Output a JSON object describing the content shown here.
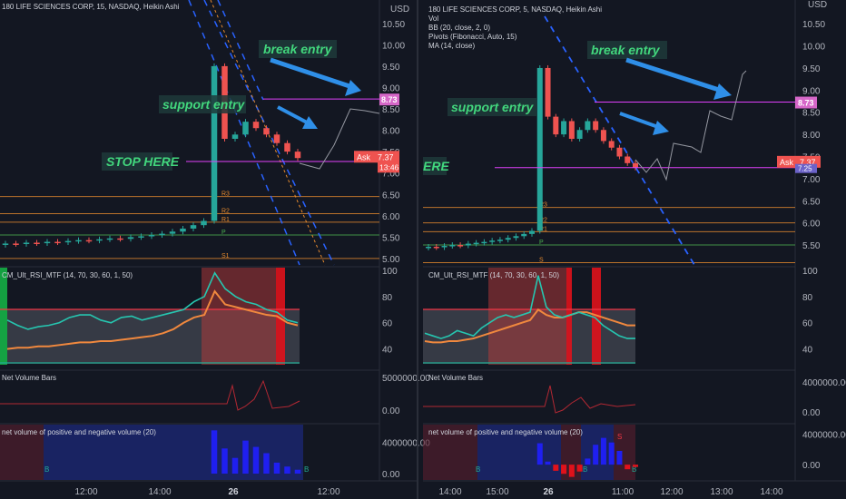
{
  "currency": "USD",
  "left": {
    "title": "180 LIFE SCIENCES CORP, 15, NASDAQ, Heikin Ashi",
    "price_ticks": [
      "10.50",
      "10.00",
      "9.50",
      "9.00",
      "8.50",
      "8.00",
      "7.50",
      "7.00",
      "6.50",
      "6.00",
      "5.50",
      "5.00"
    ],
    "price_tick_values": [
      10.5,
      10.0,
      9.5,
      9.0,
      8.5,
      8.0,
      7.5,
      7.0,
      6.5,
      6.0,
      5.5,
      5.0
    ],
    "price_range": [
      4.85,
      10.75
    ],
    "break_price_label": "8.73",
    "break_price": 8.73,
    "ask_label": "Ask",
    "ask_price": "7.37",
    "ask_value": 7.37,
    "countdown": "13:46",
    "stop_price": 7.27,
    "notes": {
      "break": "break entry",
      "support": "support entry",
      "stop": "STOP HERE"
    },
    "candles": [
      {
        "o": 5.32,
        "c": 5.35
      },
      {
        "o": 5.35,
        "c": 5.34
      },
      {
        "o": 5.34,
        "c": 5.37
      },
      {
        "o": 5.37,
        "c": 5.36
      },
      {
        "o": 5.36,
        "c": 5.39
      },
      {
        "o": 5.39,
        "c": 5.38
      },
      {
        "o": 5.38,
        "c": 5.41
      },
      {
        "o": 5.41,
        "c": 5.43
      },
      {
        "o": 5.43,
        "c": 5.42
      },
      {
        "o": 5.42,
        "c": 5.45
      },
      {
        "o": 5.45,
        "c": 5.47
      },
      {
        "o": 5.47,
        "c": 5.46
      },
      {
        "o": 5.46,
        "c": 5.5
      },
      {
        "o": 5.5,
        "c": 5.52
      },
      {
        "o": 5.52,
        "c": 5.55
      },
      {
        "o": 5.55,
        "c": 5.58
      },
      {
        "o": 5.58,
        "c": 5.63
      },
      {
        "o": 5.63,
        "c": 5.7
      },
      {
        "o": 5.7,
        "c": 5.78
      },
      {
        "o": 5.78,
        "c": 5.88
      },
      {
        "o": 5.88,
        "c": 9.5
      },
      {
        "o": 9.5,
        "c": 7.8
      },
      {
        "o": 7.8,
        "c": 7.9
      },
      {
        "o": 7.9,
        "c": 8.2
      },
      {
        "o": 8.2,
        "c": 8.05
      },
      {
        "o": 8.05,
        "c": 7.9
      },
      {
        "o": 7.9,
        "c": 7.7
      },
      {
        "o": 7.7,
        "c": 7.5
      },
      {
        "o": 7.5,
        "c": 7.35
      }
    ],
    "pivot_levels": [
      6.45,
      6.05,
      5.85,
      5.55,
      5.0
    ],
    "pivot_labels": [
      "R3",
      "R2",
      "R1",
      "P",
      "S1"
    ],
    "rsi": {
      "title": "CM_Ult_RSI_MTF (14, 70, 30, 60, 1, 50)",
      "ticks": [
        "100",
        "80",
        "60",
        "40"
      ],
      "tick_values": [
        100,
        80,
        60,
        40
      ],
      "range": [
        28,
        102
      ],
      "upper": 70,
      "lower": 30,
      "rsi_values": [
        62,
        58,
        55,
        57,
        58,
        60,
        64,
        66,
        66,
        62,
        60,
        64,
        65,
        62,
        64,
        66,
        68,
        70,
        76,
        80,
        98,
        86,
        80,
        76,
        74,
        70,
        68,
        62,
        60
      ],
      "signal_values": [
        40,
        41,
        41,
        42,
        42,
        43,
        44,
        45,
        45,
        46,
        46,
        47,
        48,
        49,
        50,
        52,
        55,
        60,
        64,
        66,
        84,
        74,
        72,
        70,
        68,
        66,
        65,
        60,
        58
      ]
    },
    "nvb": {
      "title": "Net Volume Bars",
      "ticks": [
        "5000000.00",
        "0.00"
      ],
      "tick_values": [
        5000000,
        0
      ],
      "range": [
        -2000000,
        6000000
      ]
    },
    "netvol": {
      "title": "net volume of positive and negative volume (20)",
      "ticks": [
        "4000000.00",
        "0.00"
      ],
      "tick_values": [
        4000000,
        0
      ],
      "range": [
        -800000,
        6000000
      ],
      "b_labels": [
        "B",
        "B"
      ],
      "values": [
        0,
        0,
        0,
        0,
        0,
        0,
        0,
        0,
        0,
        0,
        0,
        0,
        0,
        0,
        0,
        0,
        0,
        0,
        0,
        0,
        5500000,
        3200000,
        2000000,
        4200000,
        3400000,
        2600000,
        1400000,
        900000,
        500000
      ]
    },
    "time_ticks": [
      "12:00",
      "14:00",
      "26",
      "12:00"
    ]
  },
  "right": {
    "title": "180 LIFE SCIENCES CORP, 5, NASDAQ, Heikin Ashi",
    "legend": [
      "Vol",
      "BB (20, close, 2, 0)",
      "Pivots (Fibonacci, Auto, 15)",
      "MA (14, close)"
    ],
    "price_ticks": [
      "10.50",
      "10.00",
      "9.50",
      "9.00",
      "8.50",
      "8.00",
      "7.50",
      "7.00",
      "6.50",
      "6.00",
      "5.50"
    ],
    "price_tick_values": [
      10.5,
      10.0,
      9.5,
      9.0,
      8.5,
      8.0,
      7.5,
      7.0,
      6.5,
      6.0,
      5.5
    ],
    "price_range": [
      5.05,
      10.75
    ],
    "break_price_label": "8.73",
    "break_price": 8.73,
    "ask_label": "Ask",
    "ask_price": "7.37",
    "ask_value": 7.37,
    "small_label": "7.25",
    "stop_price": 7.25,
    "cut_text": "ERE",
    "notes": {
      "break": "break entry",
      "support": "support entry"
    },
    "candles": [
      {
        "o": 5.44,
        "c": 5.46
      },
      {
        "o": 5.46,
        "c": 5.45
      },
      {
        "o": 5.45,
        "c": 5.48
      },
      {
        "o": 5.48,
        "c": 5.5
      },
      {
        "o": 5.5,
        "c": 5.49
      },
      {
        "o": 5.49,
        "c": 5.53
      },
      {
        "o": 5.53,
        "c": 5.55
      },
      {
        "o": 5.55,
        "c": 5.57
      },
      {
        "o": 5.57,
        "c": 5.6
      },
      {
        "o": 5.6,
        "c": 5.62
      },
      {
        "o": 5.62,
        "c": 5.66
      },
      {
        "o": 5.66,
        "c": 5.7
      },
      {
        "o": 5.7,
        "c": 5.75
      },
      {
        "o": 5.75,
        "c": 5.82
      },
      {
        "o": 5.82,
        "c": 9.5
      },
      {
        "o": 9.5,
        "c": 8.4
      },
      {
        "o": 8.4,
        "c": 8.0
      },
      {
        "o": 8.0,
        "c": 8.3
      },
      {
        "o": 8.3,
        "c": 7.9
      },
      {
        "o": 7.9,
        "c": 8.1
      },
      {
        "o": 8.1,
        "c": 8.3
      },
      {
        "o": 8.3,
        "c": 8.1
      },
      {
        "o": 8.1,
        "c": 7.85
      },
      {
        "o": 7.85,
        "c": 7.7
      },
      {
        "o": 7.7,
        "c": 7.5
      },
      {
        "o": 7.5,
        "c": 7.35
      },
      {
        "o": 7.35,
        "c": 7.25
      }
    ],
    "pivot_levels": [
      6.35,
      6.0,
      5.8,
      5.5,
      5.1
    ],
    "pivot_labels": [
      "R3",
      "R2",
      "R1",
      "P",
      "S"
    ],
    "rsi": {
      "title": "CM_Ult_RSI_MTF (14, 70, 30, 60, 1, 50)",
      "ticks": [
        "100",
        "80",
        "60",
        "40"
      ],
      "tick_values": [
        100,
        80,
        60,
        40
      ],
      "range": [
        28,
        102
      ],
      "upper": 70,
      "lower": 30,
      "rsi_values": [
        52,
        50,
        48,
        50,
        54,
        52,
        50,
        56,
        60,
        64,
        66,
        64,
        66,
        68,
        96,
        72,
        66,
        64,
        66,
        68,
        66,
        64,
        58,
        54,
        50,
        48,
        48
      ],
      "signal_values": [
        46,
        45,
        45,
        46,
        46,
        47,
        48,
        50,
        52,
        54,
        56,
        58,
        60,
        62,
        70,
        66,
        64,
        64,
        66,
        68,
        68,
        66,
        64,
        62,
        60,
        58,
        58
      ]
    },
    "nvb": {
      "title": "Net Volume Bars",
      "ticks": [
        "4000000.00",
        "0.00"
      ],
      "tick_values": [
        4000000,
        0
      ],
      "range": [
        -1500000,
        5500000
      ]
    },
    "netvol": {
      "title": "net volume of positive and negative volume (20)",
      "ticks": [
        "4000000.00",
        "0.00"
      ],
      "tick_values": [
        4000000,
        0
      ],
      "range": [
        -2000000,
        5000000
      ],
      "b_labels": [
        "B",
        "B",
        "B"
      ],
      "s_label": "S",
      "values": [
        0,
        0,
        0,
        0,
        0,
        0,
        0,
        0,
        0,
        0,
        0,
        0,
        0,
        0,
        2800000,
        400000,
        -800000,
        -1200000,
        -1600000,
        -900000,
        800000,
        2600000,
        3500000,
        2900000,
        1800000,
        -600000,
        -300000
      ]
    },
    "time_ticks": [
      "14:00",
      "15:00",
      "26",
      "11:00",
      "12:00",
      "13:00",
      "14:00"
    ]
  },
  "chart_data": [
    {
      "type": "candlestick",
      "title": "180 LIFE SCIENCES CORP, 15, NASDAQ, Heikin Ashi",
      "ylabel": "USD",
      "ylim": [
        4.85,
        10.75
      ],
      "x_ticks": [
        "12:00",
        "14:00",
        "26",
        "12:00"
      ],
      "annotations": [
        "break entry",
        "support entry",
        "STOP HERE"
      ],
      "levels": {
        "break": 8.73,
        "ask": 7.37,
        "stop": 7.27
      },
      "indicators": [
        "CM_Ult_RSI_MTF (14, 70, 30, 60, 1, 50)",
        "Net Volume Bars",
        "net volume of positive and negative volume (20)"
      ]
    },
    {
      "type": "candlestick",
      "title": "180 LIFE SCIENCES CORP, 5, NASDAQ, Heikin Ashi",
      "ylabel": "USD",
      "ylim": [
        5.05,
        10.75
      ],
      "x_ticks": [
        "14:00",
        "15:00",
        "26",
        "11:00",
        "12:00",
        "13:00",
        "14:00"
      ],
      "annotations": [
        "break entry",
        "support entry"
      ],
      "levels": {
        "break": 8.73,
        "ask": 7.37,
        "stop": 7.25
      },
      "indicators": [
        "Vol",
        "BB (20, close, 2, 0)",
        "Pivots (Fibonacci, Auto, 15)",
        "MA (14, close)",
        "CM_Ult_RSI_MTF (14, 70, 30, 60, 1, 50)",
        "Net Volume Bars",
        "net volume of positive and negative volume (20)"
      ]
    }
  ]
}
